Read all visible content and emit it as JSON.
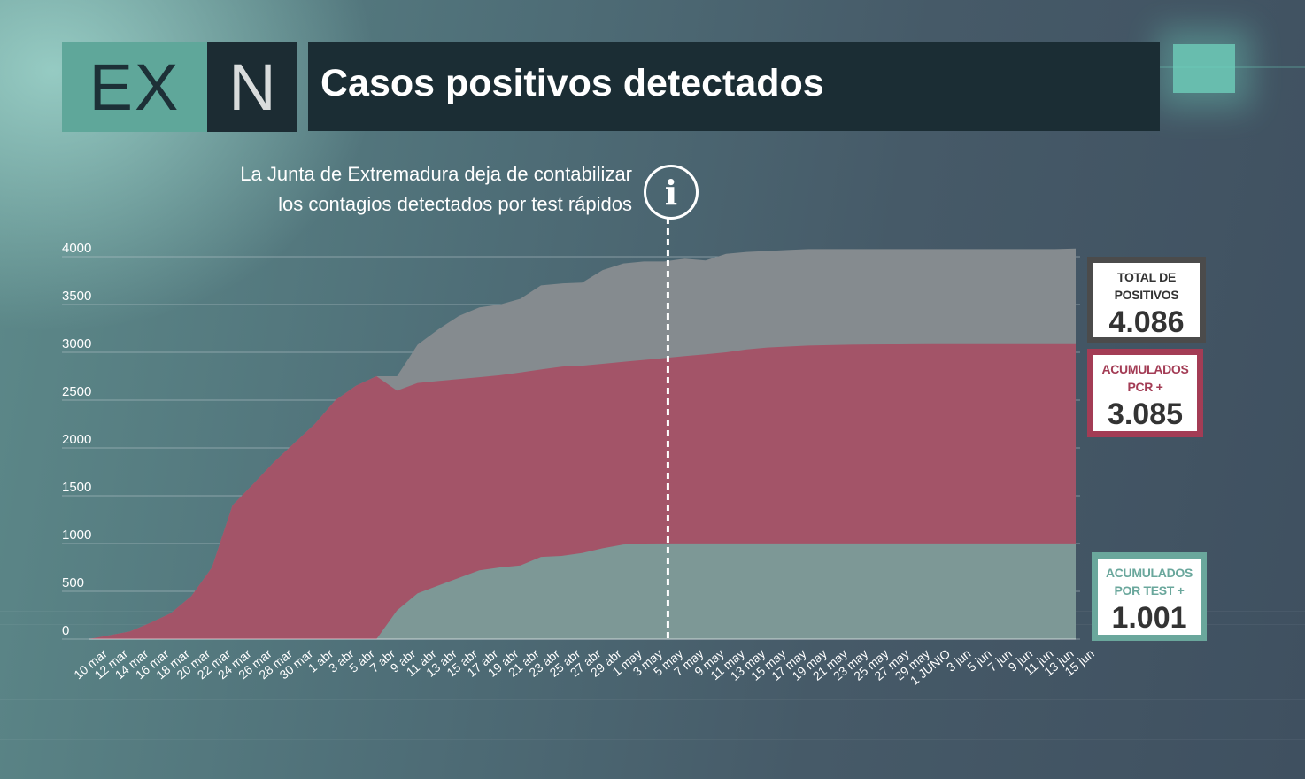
{
  "header": {
    "logo_ex": "EX",
    "logo_n": "N",
    "title": "Casos positivos detectados"
  },
  "annotation": {
    "line1": "La Junta de Extremadura deja de contabilizar",
    "line2": "los contagios detectados por test rápidos",
    "icon": "i",
    "marker_category": "5 may"
  },
  "legend_boxes": {
    "total": {
      "label_line1": "TOTAL DE",
      "label_line2": "POSITIVOS",
      "value": "4.086",
      "color": "#4b4b4b"
    },
    "pcr": {
      "label_line1": "ACUMULADOS",
      "label_line2": "PCR +",
      "value": "3.085",
      "color": "#a33c55"
    },
    "test": {
      "label_line1": "ACUMULADOS",
      "label_line2": "POR TEST +",
      "value": "1.001",
      "color": "#6aa79c"
    }
  },
  "colors": {
    "total_area": "#858b8f",
    "pcr_area": "#a35468",
    "test_area": "#7d9896",
    "grid": "#b9c6cc"
  },
  "chart_data": {
    "type": "area",
    "title": "Casos positivos detectados",
    "ylim": [
      0,
      4000
    ],
    "yticks": [
      0,
      500,
      1000,
      1500,
      2000,
      2500,
      3000,
      3500,
      4000
    ],
    "x_labels": [
      "10 mar",
      "12 mar",
      "14 mar",
      "16 mar",
      "18 mar",
      "20 mar",
      "22 mar",
      "24 mar",
      "26 mar",
      "28 mar",
      "30 mar",
      "1 abr",
      "3 abr",
      "5 abr",
      "7 abr",
      "9 abr",
      "11 abr",
      "13 abr",
      "15 abr",
      "17 abr",
      "19 abr",
      "21 abr",
      "23 abr",
      "25 abr",
      "27 abr",
      "29 abr",
      "1 may",
      "3 may",
      "5 may",
      "7 may",
      "9 may",
      "11 may",
      "13 may",
      "15 may",
      "17 may",
      "19 may",
      "21 may",
      "23 may",
      "25 may",
      "27 may",
      "29 may",
      "1 JUNIO",
      "3 jun",
      "5 jun",
      "7 jun",
      "9 jun",
      "11 jun",
      "13 jun",
      "15 jun"
    ],
    "series": [
      {
        "name": "Total de positivos",
        "values": [
          0,
          40,
          80,
          170,
          270,
          450,
          750,
          1400,
          1620,
          1850,
          2050,
          2250,
          2500,
          2650,
          2750,
          2750,
          3080,
          3240,
          3380,
          3470,
          3500,
          3560,
          3700,
          3720,
          3730,
          3860,
          3930,
          3950,
          3950,
          3980,
          3960,
          4030,
          4050,
          4060,
          4070,
          4080,
          4080,
          4080,
          4080,
          4080,
          4080,
          4080,
          4080,
          4080,
          4080,
          4080,
          4080,
          4080,
          4086
        ]
      },
      {
        "name": "Acumulados PCR +",
        "values": [
          0,
          40,
          80,
          170,
          270,
          450,
          750,
          1400,
          1620,
          1850,
          2050,
          2250,
          2500,
          2650,
          2750,
          2600,
          2680,
          2700,
          2720,
          2740,
          2760,
          2790,
          2820,
          2850,
          2860,
          2880,
          2900,
          2920,
          2940,
          2960,
          2980,
          3000,
          3030,
          3050,
          3060,
          3070,
          3075,
          3080,
          3082,
          3083,
          3084,
          3085,
          3085,
          3085,
          3085,
          3085,
          3085,
          3085,
          3085
        ]
      },
      {
        "name": "Acumulados por test +",
        "values": [
          0,
          0,
          0,
          0,
          0,
          0,
          0,
          0,
          0,
          0,
          0,
          0,
          0,
          0,
          0,
          300,
          480,
          560,
          640,
          720,
          750,
          770,
          860,
          870,
          900,
          950,
          990,
          1000,
          1001,
          1001,
          1001,
          1001,
          1001,
          1001,
          1001,
          1001,
          1001,
          1001,
          1001,
          1001,
          1001,
          1001,
          1001,
          1001,
          1001,
          1001,
          1001,
          1001,
          1001
        ]
      }
    ]
  }
}
